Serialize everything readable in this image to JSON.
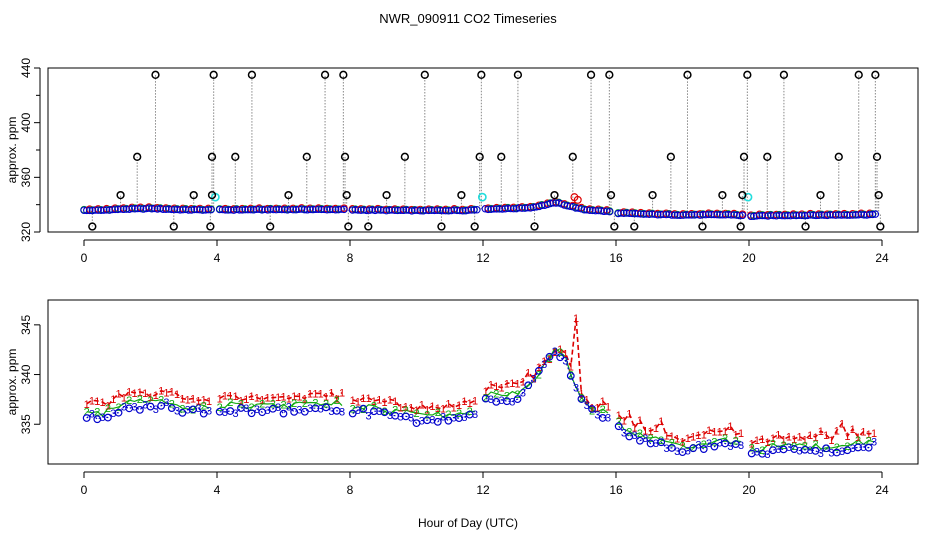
{
  "figure_title": "NWR_090911  CO2 Timeseries",
  "xlabel": "Hour of Day (UTC)",
  "colors": {
    "c1": "#dd0000",
    "c2": "#11aa11",
    "c3": "#0000cc",
    "cyan": "#22dddd",
    "black": "#000000",
    "drop": "#888888"
  },
  "chart_data": [
    {
      "type": "scatter",
      "title": "NWR_090911  CO2 Timeseries",
      "ylabel": "approx. ppm",
      "xlim": [
        0,
        24
      ],
      "ylim": [
        320,
        440
      ],
      "xticks": [
        "0",
        "4",
        "8",
        "12",
        "16",
        "20",
        "24"
      ],
      "xtick_values": [
        0,
        4,
        8,
        12,
        16,
        20,
        24
      ],
      "yticks": [
        "320",
        "360",
        "400",
        "440"
      ],
      "ytick_values": [
        320,
        360,
        400,
        440
      ],
      "baseline_profile": [
        [
          0.0,
          335.8
        ],
        [
          0.5,
          335.9
        ],
        [
          1.0,
          336.6
        ],
        [
          2.0,
          337.2
        ],
        [
          3.0,
          336.3
        ],
        [
          4.0,
          336.2
        ],
        [
          6.0,
          336.5
        ],
        [
          7.8,
          336.5
        ],
        [
          8.0,
          336.2
        ],
        [
          10.0,
          335.7
        ],
        [
          11.5,
          335.9
        ],
        [
          12.0,
          336.7
        ],
        [
          13.0,
          337.3
        ],
        [
          13.5,
          338.0
        ],
        [
          14.0,
          340.5
        ],
        [
          14.2,
          341.5
        ],
        [
          14.6,
          339.0
        ],
        [
          15.0,
          336.5
        ],
        [
          15.8,
          335.0
        ],
        [
          16.0,
          333.9
        ],
        [
          17.0,
          333.0
        ],
        [
          18.0,
          332.5
        ],
        [
          19.5,
          332.7
        ],
        [
          20.0,
          331.6
        ],
        [
          21.0,
          332.2
        ],
        [
          22.0,
          332.3
        ],
        [
          23.8,
          332.8
        ]
      ],
      "gaps": [
        [
          3.85,
          4.05
        ],
        [
          7.85,
          8.05
        ],
        [
          11.85,
          12.05
        ],
        [
          15.85,
          16.05
        ],
        [
          19.85,
          20.05
        ]
      ],
      "spikes_high": [
        {
          "x": 2.15,
          "y": 435
        },
        {
          "x": 3.9,
          "y": 435
        },
        {
          "x": 5.05,
          "y": 435
        },
        {
          "x": 7.25,
          "y": 435
        },
        {
          "x": 7.8,
          "y": 435
        },
        {
          "x": 10.25,
          "y": 435
        },
        {
          "x": 11.95,
          "y": 435
        },
        {
          "x": 13.05,
          "y": 435
        },
        {
          "x": 15.25,
          "y": 435
        },
        {
          "x": 15.8,
          "y": 435
        },
        {
          "x": 18.15,
          "y": 435
        },
        {
          "x": 19.95,
          "y": 435
        },
        {
          "x": 21.05,
          "y": 435
        },
        {
          "x": 23.3,
          "y": 435
        },
        {
          "x": 23.8,
          "y": 435
        }
      ],
      "spikes_mid": [
        {
          "x": 1.6,
          "y": 375
        },
        {
          "x": 3.85,
          "y": 375
        },
        {
          "x": 4.55,
          "y": 375
        },
        {
          "x": 6.7,
          "y": 375
        },
        {
          "x": 7.85,
          "y": 375
        },
        {
          "x": 9.65,
          "y": 375
        },
        {
          "x": 11.9,
          "y": 375
        },
        {
          "x": 12.55,
          "y": 375
        },
        {
          "x": 14.7,
          "y": 375
        },
        {
          "x": 17.65,
          "y": 375
        },
        {
          "x": 19.85,
          "y": 375
        },
        {
          "x": 20.55,
          "y": 375
        },
        {
          "x": 22.7,
          "y": 375
        },
        {
          "x": 23.85,
          "y": 375
        }
      ],
      "spikes_low": [
        {
          "x": 1.1,
          "y": 347
        },
        {
          "x": 3.3,
          "y": 347
        },
        {
          "x": 3.85,
          "y": 347
        },
        {
          "x": 6.15,
          "y": 347
        },
        {
          "x": 7.9,
          "y": 347
        },
        {
          "x": 9.1,
          "y": 347
        },
        {
          "x": 11.35,
          "y": 347
        },
        {
          "x": 14.15,
          "y": 347
        },
        {
          "x": 15.85,
          "y": 347
        },
        {
          "x": 17.1,
          "y": 347
        },
        {
          "x": 19.2,
          "y": 347
        },
        {
          "x": 19.8,
          "y": 347
        },
        {
          "x": 22.15,
          "y": 347
        },
        {
          "x": 23.9,
          "y": 347
        }
      ],
      "spikes_bottom": [
        {
          "x": 0.25,
          "y": 324
        },
        {
          "x": 2.7,
          "y": 324
        },
        {
          "x": 3.8,
          "y": 324
        },
        {
          "x": 5.6,
          "y": 324
        },
        {
          "x": 7.95,
          "y": 324
        },
        {
          "x": 8.55,
          "y": 324
        },
        {
          "x": 10.75,
          "y": 324
        },
        {
          "x": 11.75,
          "y": 324
        },
        {
          "x": 13.55,
          "y": 324
        },
        {
          "x": 15.95,
          "y": 324
        },
        {
          "x": 16.55,
          "y": 324
        },
        {
          "x": 18.6,
          "y": 324
        },
        {
          "x": 19.75,
          "y": 324
        },
        {
          "x": 21.7,
          "y": 324
        },
        {
          "x": 23.95,
          "y": 324
        }
      ],
      "cyan_points": [
        {
          "x": 3.95,
          "y": 345.5
        },
        {
          "x": 11.98,
          "y": 345.5
        },
        {
          "x": 19.97,
          "y": 345.5
        }
      ]
    },
    {
      "type": "scatter",
      "title": "",
      "ylabel": "approx. ppm",
      "xlim": [
        0,
        24
      ],
      "ylim": [
        331,
        347.5
      ],
      "xticks": [
        "0",
        "4",
        "8",
        "12",
        "16",
        "20",
        "24"
      ],
      "xtick_values": [
        0,
        4,
        8,
        12,
        16,
        20,
        24
      ],
      "yticks": [
        "335",
        "340",
        "345"
      ],
      "ytick_values": [
        335,
        340,
        345
      ],
      "series": [
        {
          "name": "1",
          "color": "#dd0000",
          "line_style": "dashed",
          "symbol": "1"
        },
        {
          "name": "2",
          "color": "#11aa11",
          "line_style": "solid",
          "symbol": "2"
        },
        {
          "name": "3",
          "color": "#0000cc",
          "line_style": "dotted",
          "symbol": "3"
        }
      ],
      "profile": [
        [
          0.0,
          335.7
        ],
        [
          0.3,
          335.9
        ],
        [
          0.6,
          335.6
        ],
        [
          1.0,
          336.4
        ],
        [
          1.5,
          336.8
        ],
        [
          2.0,
          336.6
        ],
        [
          2.5,
          336.9
        ],
        [
          3.0,
          336.3
        ],
        [
          3.8,
          336.3
        ],
        [
          4.0,
          336.5
        ],
        [
          5.0,
          336.3
        ],
        [
          6.0,
          336.4
        ],
        [
          7.0,
          336.5
        ],
        [
          7.8,
          336.6
        ],
        [
          8.0,
          336.4
        ],
        [
          9.0,
          336.0
        ],
        [
          10.0,
          335.4
        ],
        [
          11.0,
          335.5
        ],
        [
          11.8,
          335.9
        ],
        [
          12.0,
          337.3
        ],
        [
          12.5,
          337.6
        ],
        [
          13.0,
          337.5
        ],
        [
          13.2,
          338.0
        ],
        [
          13.6,
          339.8
        ],
        [
          14.0,
          341.5
        ],
        [
          14.2,
          342.3
        ],
        [
          14.5,
          341.4
        ],
        [
          14.8,
          338.8
        ],
        [
          15.0,
          337.2
        ],
        [
          15.3,
          336.5
        ],
        [
          15.6,
          335.8
        ],
        [
          15.8,
          335.4
        ],
        [
          16.0,
          334.7
        ],
        [
          16.5,
          333.7
        ],
        [
          17.0,
          333.3
        ],
        [
          17.5,
          332.9
        ],
        [
          18.0,
          332.2
        ],
        [
          18.5,
          332.7
        ],
        [
          19.0,
          332.9
        ],
        [
          19.8,
          332.7
        ],
        [
          20.0,
          331.9
        ],
        [
          20.5,
          332.1
        ],
        [
          21.0,
          332.5
        ],
        [
          22.0,
          332.3
        ],
        [
          23.0,
          332.6
        ],
        [
          23.8,
          333.0
        ]
      ],
      "offsets": {
        "1": 1.3,
        "2": 0.5,
        "3": 0.0
      },
      "gaps": [
        [
          3.85,
          4.05
        ],
        [
          7.85,
          8.05
        ],
        [
          11.85,
          12.05
        ],
        [
          15.85,
          16.05
        ],
        [
          19.85,
          20.05
        ]
      ],
      "peak": {
        "x": 14.85,
        "y": 345.7,
        "series": "1"
      }
    }
  ]
}
